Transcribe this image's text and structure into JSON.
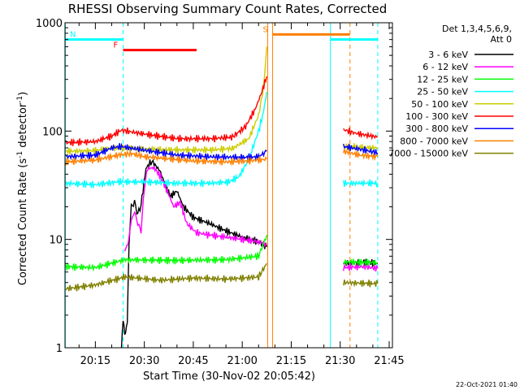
{
  "chart_data": {
    "type": "line",
    "title": "RHESSI Observing Summary Count Rates, Corrected",
    "ylabel": "Corrected Count Rate (s-1 detector-1)",
    "xlabel": "Start Time (30-Nov-02 20:05:42)",
    "y_scale": "log",
    "ylim": [
      1,
      1000
    ],
    "xlim_minutes_of_day": [
      1205.7,
      1306
    ],
    "y_ticks": [
      {
        "value": 1,
        "label": "1"
      },
      {
        "value": 10,
        "label": "10"
      },
      {
        "value": 100,
        "label": "100"
      },
      {
        "value": 1000,
        "label": "1000"
      }
    ],
    "x_ticks": [
      {
        "value": 1215,
        "label": "20:15"
      },
      {
        "value": 1230,
        "label": "20:30"
      },
      {
        "value": 1245,
        "label": "20:45"
      },
      {
        "value": 1260,
        "label": "21:00"
      },
      {
        "value": 1275,
        "label": "21:15"
      },
      {
        "value": 1290,
        "label": "21:30"
      },
      {
        "value": 1305,
        "label": "21:45"
      }
    ],
    "legend_header": [
      "Det 1,3,4,5,6,9,",
      "Att 0"
    ],
    "series": [
      {
        "name": "3 - 6 keV",
        "color": "#000000",
        "segments": [
          [
            [
              1223,
              1
            ],
            [
              1223.5,
              1.9
            ],
            [
              1224,
              1.3
            ],
            [
              1224.8,
              1.7
            ],
            [
              1225.3,
              9.5
            ],
            [
              1226,
              20
            ],
            [
              1227,
              22
            ],
            [
              1228,
              17
            ],
            [
              1229,
              21
            ],
            [
              1230.5,
              45
            ],
            [
              1232,
              52
            ],
            [
              1233,
              50
            ],
            [
              1235,
              42
            ],
            [
              1236,
              34
            ],
            [
              1238,
              25
            ],
            [
              1240,
              28
            ],
            [
              1242,
              20
            ],
            [
              1245,
              16
            ],
            [
              1250,
              14
            ],
            [
              1255,
              12
            ],
            [
              1260,
              10.5
            ],
            [
              1265,
              9.5
            ],
            [
              1267.5,
              8.5
            ]
          ],
          [
            [
              1291,
              6
            ],
            [
              1297,
              6.2
            ],
            [
              1301.5,
              6
            ]
          ]
        ]
      },
      {
        "name": "6 - 12 keV",
        "color": "#ff00ff",
        "segments": [
          [
            [
              1224,
              8
            ],
            [
              1225,
              9
            ],
            [
              1226,
              15
            ],
            [
              1227,
              18
            ],
            [
              1228,
              14
            ],
            [
              1229,
              12
            ],
            [
              1230,
              30
            ],
            [
              1231,
              45
            ],
            [
              1233,
              46
            ],
            [
              1235,
              38
            ],
            [
              1237,
              28
            ],
            [
              1239,
              20
            ],
            [
              1241,
              22
            ],
            [
              1243,
              14
            ],
            [
              1246,
              11.5
            ],
            [
              1250,
              11
            ],
            [
              1255,
              10.5
            ],
            [
              1260,
              10
            ],
            [
              1265,
              9.5
            ],
            [
              1267.5,
              9
            ]
          ],
          [
            [
              1291,
              5.5
            ],
            [
              1297,
              5.6
            ],
            [
              1301.5,
              5.4
            ]
          ]
        ]
      },
      {
        "name": "12 - 25 keV",
        "color": "#00ff00",
        "segments": [
          [
            [
              1206,
              5.6
            ],
            [
              1215,
              5.5
            ],
            [
              1224,
              6.5
            ],
            [
              1240,
              6.4
            ],
            [
              1255,
              6.5
            ],
            [
              1265,
              7
            ],
            [
              1267.5,
              11
            ]
          ],
          [
            [
              1291,
              6.2
            ],
            [
              1301.5,
              6.1
            ]
          ]
        ]
      },
      {
        "name": "25 - 50 keV",
        "color": "#00ffff",
        "segments": [
          [
            [
              1206,
              33
            ],
            [
              1215,
              32
            ],
            [
              1222,
              34
            ],
            [
              1230,
              34
            ],
            [
              1240,
              33
            ],
            [
              1250,
              33
            ],
            [
              1256,
              34
            ],
            [
              1259,
              38
            ],
            [
              1262,
              55
            ],
            [
              1265,
              100
            ],
            [
              1266.5,
              150
            ],
            [
              1267.5,
              230
            ]
          ],
          [
            [
              1291,
              33
            ],
            [
              1301.5,
              33
            ]
          ]
        ]
      },
      {
        "name": "50 - 100 keV",
        "color": "#cccc00",
        "segments": [
          [
            [
              1206,
              65
            ],
            [
              1215,
              66
            ],
            [
              1220,
              70
            ],
            [
              1225,
              70
            ],
            [
              1230,
              68
            ],
            [
              1240,
              67
            ],
            [
              1250,
              67
            ],
            [
              1257,
              69
            ],
            [
              1262,
              85
            ],
            [
              1265,
              140
            ],
            [
              1266.5,
              250
            ],
            [
              1267.5,
              600
            ]
          ],
          [
            [
              1291,
              72
            ],
            [
              1301.5,
              70
            ]
          ]
        ]
      },
      {
        "name": "100 - 300 keV",
        "color": "#ff0000",
        "segments": [
          [
            [
              1206,
              78
            ],
            [
              1215,
              80
            ],
            [
              1220,
              90
            ],
            [
              1223,
              102
            ],
            [
              1227,
              97
            ],
            [
              1232,
              92
            ],
            [
              1240,
              85
            ],
            [
              1250,
              85
            ],
            [
              1257,
              88
            ],
            [
              1261,
              110
            ],
            [
              1264,
              160
            ],
            [
              1266,
              230
            ],
            [
              1267.5,
              320
            ]
          ],
          [
            [
              1291,
              103
            ],
            [
              1295,
              95
            ],
            [
              1301.5,
              88
            ]
          ]
        ]
      },
      {
        "name": "300 - 800 keV",
        "color": "#0000ff",
        "segments": [
          [
            [
              1206,
              58
            ],
            [
              1215,
              60
            ],
            [
              1220,
              70
            ],
            [
              1223,
              72
            ],
            [
              1228,
              68
            ],
            [
              1234,
              64
            ],
            [
              1240,
              60
            ],
            [
              1250,
              58
            ],
            [
              1260,
              57
            ],
            [
              1265,
              58
            ],
            [
              1267.5,
              65
            ]
          ],
          [
            [
              1291,
              72
            ],
            [
              1296,
              68
            ],
            [
              1301.5,
              63
            ]
          ]
        ]
      },
      {
        "name": "800 - 7000 keV",
        "color": "#ff8000",
        "segments": [
          [
            [
              1206,
              52
            ],
            [
              1215,
              54
            ],
            [
              1222,
              60
            ],
            [
              1226,
              62
            ],
            [
              1230,
              58
            ],
            [
              1236,
              56
            ],
            [
              1245,
              53
            ],
            [
              1255,
              52
            ],
            [
              1262,
              53
            ],
            [
              1267.5,
              55
            ]
          ],
          [
            [
              1291,
              65
            ],
            [
              1296,
              60
            ],
            [
              1301.5,
              58
            ]
          ]
        ]
      },
      {
        "name": "7000 - 15000 keV",
        "color": "#808000",
        "segments": [
          [
            [
              1206,
              3.5
            ],
            [
              1215,
              3.8
            ],
            [
              1224,
              4.5
            ],
            [
              1235,
              4.2
            ],
            [
              1245,
              4.4
            ],
            [
              1255,
              4.3
            ],
            [
              1265,
              4.5
            ],
            [
              1267.5,
              6
            ]
          ],
          [
            [
              1291,
              4
            ],
            [
              1301.5,
              3.9
            ]
          ]
        ]
      }
    ],
    "flags": [
      {
        "label": "N",
        "color": "#00ffff",
        "y": 700,
        "x_from": 1205.7,
        "x_to": 1223.5
      },
      {
        "label": "F",
        "color": "#ff0000",
        "y": 560,
        "x_from": 1223.5,
        "x_to": 1246
      },
      {
        "label": "S",
        "color": "#ff8000",
        "y": 780,
        "x_from": 1269.3,
        "x_to": 1293
      },
      {
        "label": "",
        "color": "#00ffff",
        "y": 700,
        "x_from": 1287,
        "x_to": 1301.5
      }
    ],
    "markers": [
      {
        "x": 1223.5,
        "color": "#00ffff",
        "style": "dashed"
      },
      {
        "x": 1267.8,
        "color": "#ff8000",
        "style": "solid"
      },
      {
        "x": 1269.3,
        "color": "#ff8000",
        "style": "solid"
      },
      {
        "x": 1287,
        "color": "#00ffff",
        "style": "solid"
      },
      {
        "x": 1293,
        "color": "#ff8000",
        "style": "dashed"
      },
      {
        "x": 1301.5,
        "color": "#00ffff",
        "style": "dashed"
      },
      {
        "x": 1205.8,
        "color": "#00ffff",
        "style": "solid"
      }
    ],
    "footer_date": "22-Oct-2021 01:40"
  }
}
